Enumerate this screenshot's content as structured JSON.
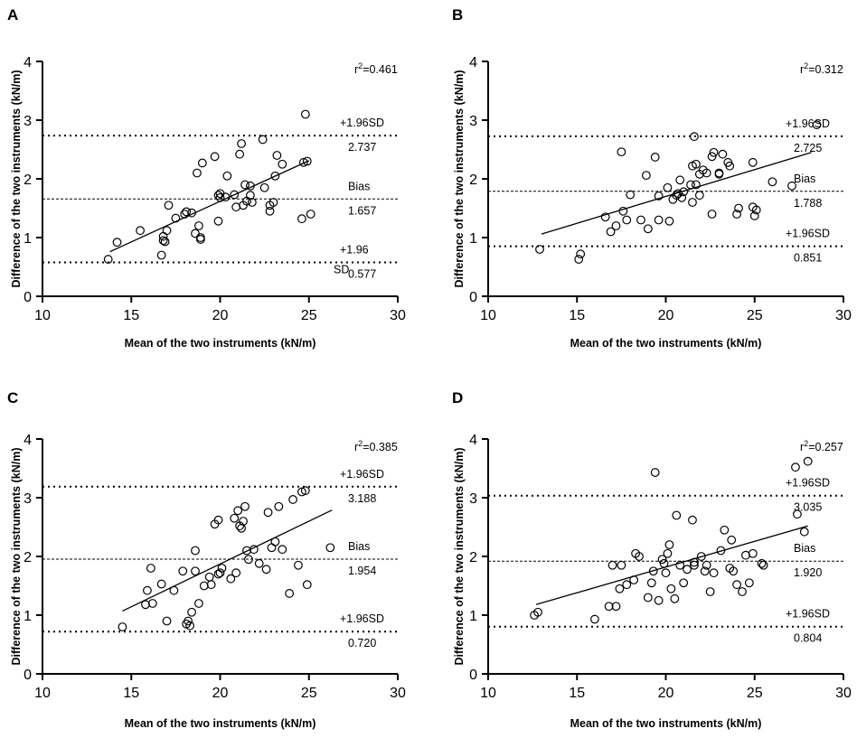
{
  "chart_data": [
    {
      "panel": "A",
      "type": "scatter",
      "xlabel": "Mean of the two instruments (kN/m)",
      "ylabel": "Difference of the two instruments (kN/m)",
      "xlim": [
        10,
        30
      ],
      "ylim": [
        0,
        4
      ],
      "xticks": [
        10,
        15,
        20,
        25,
        30
      ],
      "yticks": [
        0,
        1,
        2,
        3,
        4
      ],
      "r2": "0.461",
      "bias": {
        "label": "Bias",
        "value": 1.657,
        "value_text": "1.657"
      },
      "upper": {
        "label": "+1.96SD",
        "value": 2.737,
        "value_text": "2.737"
      },
      "lower": {
        "label": "+1.96",
        "label2": "SD",
        "value": 0.577,
        "value_text": "0.577"
      },
      "fit": [
        [
          13.8,
          0.76
        ],
        [
          25.0,
          2.31
        ]
      ],
      "points": [
        [
          13.7,
          0.63
        ],
        [
          14.2,
          0.92
        ],
        [
          15.5,
          1.12
        ],
        [
          16.7,
          0.7
        ],
        [
          16.8,
          0.95
        ],
        [
          16.8,
          1.02
        ],
        [
          16.9,
          0.93
        ],
        [
          17.0,
          1.12
        ],
        [
          17.1,
          1.55
        ],
        [
          17.5,
          1.33
        ],
        [
          18.0,
          1.4
        ],
        [
          18.1,
          1.44
        ],
        [
          18.4,
          1.42
        ],
        [
          18.6,
          1.07
        ],
        [
          18.7,
          2.1
        ],
        [
          18.8,
          1.2
        ],
        [
          18.9,
          0.97
        ],
        [
          18.9,
          1.0
        ],
        [
          19.0,
          2.27
        ],
        [
          19.7,
          2.38
        ],
        [
          19.9,
          1.28
        ],
        [
          19.9,
          1.72
        ],
        [
          20.0,
          1.68
        ],
        [
          20.0,
          1.75
        ],
        [
          20.3,
          1.69
        ],
        [
          20.4,
          2.05
        ],
        [
          20.8,
          1.73
        ],
        [
          20.9,
          1.52
        ],
        [
          21.1,
          2.42
        ],
        [
          21.2,
          2.6
        ],
        [
          21.3,
          1.55
        ],
        [
          21.4,
          1.9
        ],
        [
          21.5,
          1.62
        ],
        [
          21.7,
          1.72
        ],
        [
          21.7,
          1.88
        ],
        [
          21.8,
          1.6
        ],
        [
          22.4,
          2.67
        ],
        [
          22.5,
          1.85
        ],
        [
          22.8,
          1.45
        ],
        [
          22.8,
          1.55
        ],
        [
          23.0,
          1.6
        ],
        [
          23.1,
          2.05
        ],
        [
          23.2,
          2.4
        ],
        [
          23.5,
          2.25
        ],
        [
          24.6,
          1.32
        ],
        [
          24.7,
          2.28
        ],
        [
          24.8,
          3.1
        ],
        [
          24.9,
          2.3
        ],
        [
          25.1,
          1.4
        ]
      ]
    },
    {
      "panel": "B",
      "type": "scatter",
      "xlabel": "Mean of the two instruments (kN/m)",
      "ylabel": "Difference of the two instruments (kN/m)",
      "xlim": [
        10,
        30
      ],
      "ylim": [
        0,
        4
      ],
      "xticks": [
        10,
        15,
        20,
        25,
        30
      ],
      "yticks": [
        0,
        1,
        2,
        3,
        4
      ],
      "r2": "0.312",
      "bias": {
        "label": "Bias",
        "value": 1.788,
        "value_text": "1.788"
      },
      "upper": {
        "label": "+1.96SD",
        "value": 2.725,
        "value_text": "2.725"
      },
      "lower": {
        "label": "+1.96SD",
        "label2": "",
        "value": 0.851,
        "value_text": "0.851"
      },
      "fit": [
        [
          13.0,
          1.06
        ],
        [
          28.2,
          2.45
        ]
      ],
      "points": [
        [
          12.9,
          0.8
        ],
        [
          15.1,
          0.63
        ],
        [
          15.2,
          0.72
        ],
        [
          16.6,
          1.35
        ],
        [
          16.9,
          1.1
        ],
        [
          17.2,
          1.2
        ],
        [
          17.5,
          2.46
        ],
        [
          17.6,
          1.45
        ],
        [
          17.8,
          1.3
        ],
        [
          18.0,
          1.73
        ],
        [
          18.6,
          1.3
        ],
        [
          18.9,
          2.06
        ],
        [
          19.0,
          1.15
        ],
        [
          19.4,
          2.37
        ],
        [
          19.6,
          1.71
        ],
        [
          19.6,
          1.3
        ],
        [
          20.1,
          1.85
        ],
        [
          20.2,
          1.28
        ],
        [
          20.4,
          1.65
        ],
        [
          20.6,
          1.72
        ],
        [
          20.7,
          1.75
        ],
        [
          20.8,
          1.98
        ],
        [
          20.9,
          1.68
        ],
        [
          21.0,
          1.78
        ],
        [
          21.4,
          1.9
        ],
        [
          21.5,
          2.22
        ],
        [
          21.5,
          1.6
        ],
        [
          21.6,
          2.72
        ],
        [
          21.7,
          2.25
        ],
        [
          21.7,
          1.9
        ],
        [
          21.9,
          1.72
        ],
        [
          21.9,
          2.08
        ],
        [
          22.1,
          2.15
        ],
        [
          22.3,
          2.1
        ],
        [
          22.6,
          2.38
        ],
        [
          22.6,
          1.4
        ],
        [
          22.7,
          2.45
        ],
        [
          23.0,
          2.08
        ],
        [
          23.0,
          2.1
        ],
        [
          23.2,
          2.42
        ],
        [
          23.5,
          2.28
        ],
        [
          23.6,
          2.22
        ],
        [
          24.0,
          1.4
        ],
        [
          24.1,
          1.5
        ],
        [
          24.9,
          2.28
        ],
        [
          24.9,
          1.52
        ],
        [
          25.0,
          1.37
        ],
        [
          25.1,
          1.47
        ],
        [
          26.0,
          1.95
        ],
        [
          27.1,
          1.88
        ],
        [
          28.5,
          2.92
        ]
      ]
    },
    {
      "panel": "C",
      "type": "scatter",
      "xlabel": "Mean of the two instruments (kN/m)",
      "ylabel": "Difference of the two instruments (kN/m)",
      "xlim": [
        10,
        30
      ],
      "ylim": [
        0,
        4
      ],
      "xticks": [
        10,
        15,
        20,
        25,
        30
      ],
      "yticks": [
        0,
        1,
        2,
        3,
        4
      ],
      "r2": "0.385",
      "bias": {
        "label": "Bias",
        "value": 1.954,
        "value_text": "1.954"
      },
      "upper": {
        "label": "+1.96SD",
        "value": 3.188,
        "value_text": "3.188"
      },
      "lower": {
        "label": "+1.96SD",
        "label2": "",
        "value": 0.72,
        "value_text": "0.720"
      },
      "fit": [
        [
          14.5,
          1.07
        ],
        [
          26.3,
          2.79
        ]
      ],
      "points": [
        [
          14.5,
          0.8
        ],
        [
          15.8,
          1.18
        ],
        [
          15.9,
          1.42
        ],
        [
          16.1,
          1.8
        ],
        [
          16.2,
          1.2
        ],
        [
          16.7,
          1.53
        ],
        [
          17.0,
          0.9
        ],
        [
          17.4,
          1.42
        ],
        [
          17.9,
          1.75
        ],
        [
          18.1,
          0.85
        ],
        [
          18.2,
          0.9
        ],
        [
          18.3,
          0.82
        ],
        [
          18.4,
          1.05
        ],
        [
          18.6,
          1.75
        ],
        [
          18.6,
          2.1
        ],
        [
          18.8,
          1.2
        ],
        [
          19.1,
          1.5
        ],
        [
          19.4,
          1.65
        ],
        [
          19.5,
          1.52
        ],
        [
          19.7,
          2.55
        ],
        [
          19.9,
          2.62
        ],
        [
          19.9,
          1.7
        ],
        [
          20.0,
          1.72
        ],
        [
          20.1,
          1.8
        ],
        [
          20.6,
          1.62
        ],
        [
          20.8,
          2.65
        ],
        [
          20.9,
          1.72
        ],
        [
          21.0,
          2.78
        ],
        [
          21.1,
          2.52
        ],
        [
          21.2,
          2.48
        ],
        [
          21.3,
          2.6
        ],
        [
          21.4,
          2.85
        ],
        [
          21.5,
          2.1
        ],
        [
          21.6,
          1.95
        ],
        [
          21.9,
          2.12
        ],
        [
          22.2,
          1.88
        ],
        [
          22.6,
          1.78
        ],
        [
          22.7,
          2.75
        ],
        [
          22.9,
          2.15
        ],
        [
          23.1,
          2.25
        ],
        [
          23.3,
          2.85
        ],
        [
          23.5,
          2.12
        ],
        [
          23.9,
          1.37
        ],
        [
          24.1,
          2.97
        ],
        [
          24.4,
          1.85
        ],
        [
          24.6,
          3.1
        ],
        [
          24.8,
          3.12
        ],
        [
          24.9,
          1.52
        ],
        [
          26.2,
          2.15
        ]
      ]
    },
    {
      "panel": "D",
      "type": "scatter",
      "xlabel": "Mean of the two instruments (kN/m)",
      "ylabel": "Difference of the two instruments (kN/m)",
      "xlim": [
        10,
        30
      ],
      "ylim": [
        0,
        4
      ],
      "xticks": [
        10,
        15,
        20,
        25,
        30
      ],
      "yticks": [
        0,
        1,
        2,
        3,
        4
      ],
      "r2": "0.257",
      "bias": {
        "label": "Bias",
        "value": 1.92,
        "value_text": "1.920"
      },
      "upper": {
        "label": "+1.96SD",
        "value": 3.035,
        "value_text": "3.035"
      },
      "lower": {
        "label": "+1.96SD",
        "label2": "",
        "value": 0.804,
        "value_text": "0.804"
      },
      "fit": [
        [
          12.7,
          1.18
        ],
        [
          28.0,
          2.52
        ]
      ],
      "points": [
        [
          12.6,
          1.0
        ],
        [
          12.8,
          1.05
        ],
        [
          16.0,
          0.93
        ],
        [
          16.8,
          1.15
        ],
        [
          17.0,
          1.85
        ],
        [
          17.2,
          1.15
        ],
        [
          17.4,
          1.45
        ],
        [
          17.5,
          1.85
        ],
        [
          17.8,
          1.52
        ],
        [
          18.2,
          1.6
        ],
        [
          18.3,
          2.05
        ],
        [
          18.5,
          2.0
        ],
        [
          19.0,
          1.3
        ],
        [
          19.2,
          1.55
        ],
        [
          19.3,
          1.75
        ],
        [
          19.4,
          3.43
        ],
        [
          19.6,
          1.25
        ],
        [
          19.8,
          1.95
        ],
        [
          19.9,
          1.88
        ],
        [
          20.0,
          1.72
        ],
        [
          20.1,
          2.05
        ],
        [
          20.2,
          2.2
        ],
        [
          20.3,
          1.45
        ],
        [
          20.5,
          1.28
        ],
        [
          20.6,
          2.7
        ],
        [
          20.8,
          1.85
        ],
        [
          21.0,
          1.55
        ],
        [
          21.2,
          1.78
        ],
        [
          21.5,
          2.62
        ],
        [
          21.6,
          1.9
        ],
        [
          21.6,
          1.85
        ],
        [
          22.0,
          2.0
        ],
        [
          22.2,
          1.75
        ],
        [
          22.3,
          1.85
        ],
        [
          22.5,
          1.4
        ],
        [
          22.7,
          1.72
        ],
        [
          23.1,
          2.1
        ],
        [
          23.3,
          2.45
        ],
        [
          23.6,
          1.8
        ],
        [
          23.7,
          2.28
        ],
        [
          23.8,
          1.75
        ],
        [
          24.0,
          1.52
        ],
        [
          24.3,
          1.4
        ],
        [
          24.5,
          2.02
        ],
        [
          24.7,
          1.55
        ],
        [
          24.9,
          2.05
        ],
        [
          25.4,
          1.88
        ],
        [
          25.5,
          1.85
        ],
        [
          27.3,
          3.52
        ],
        [
          27.4,
          2.72
        ],
        [
          27.8,
          2.42
        ],
        [
          28.0,
          3.62
        ]
      ]
    }
  ]
}
